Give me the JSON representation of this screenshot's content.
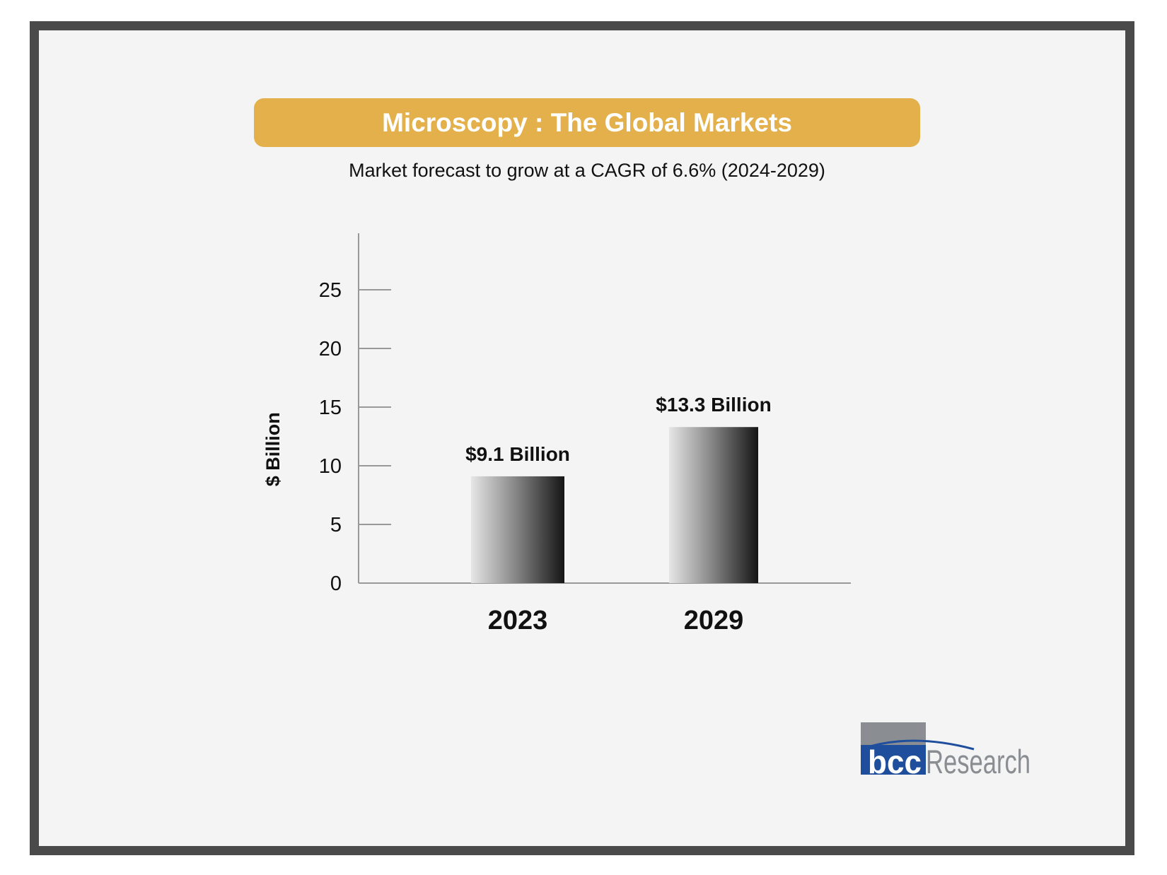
{
  "header": {
    "title": "Microscopy : The Global Markets",
    "subtitle": "Market forecast to grow at a CAGR of 6.6% (2024-2029)"
  },
  "logo": {
    "mark": "bcc",
    "word": "Research"
  },
  "colors": {
    "title_bar": "#e3b04b",
    "frame": "#4a4a4a",
    "background": "#f4f4f4",
    "logo_blue": "#1f4e9c",
    "logo_gray": "#8a8d91"
  },
  "chart_data": {
    "type": "bar",
    "categories": [
      "2023",
      "2029"
    ],
    "values": [
      9.1,
      13.3
    ],
    "data_labels": [
      "$9.1 Billion",
      "$13.3 Billion"
    ],
    "ylabel": "$ Billion",
    "yticks": [
      0,
      5,
      10,
      15,
      20,
      25
    ],
    "ylim": [
      0,
      30
    ],
    "grid": false,
    "legend": "none",
    "bar_fill": "gradient light-gray to black"
  }
}
